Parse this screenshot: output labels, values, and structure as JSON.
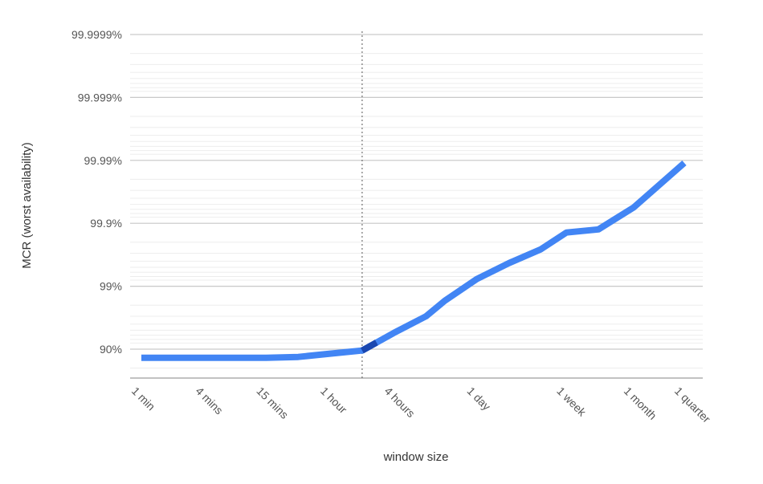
{
  "chart_data": {
    "type": "line",
    "xlabel": "window size",
    "ylabel": "MCR (worst availability)",
    "y_scale": "log-nines",
    "x_scale": "log",
    "grid": true,
    "x_ticks": [
      "1 min",
      "4 mins",
      "15 mins",
      "1 hour",
      "4 hours",
      "1 day",
      "1 week",
      "1 month",
      "1 quarter"
    ],
    "y_ticks": [
      "90%",
      "99%",
      "99.9%",
      "99.99%",
      "99.999%",
      "99.9999%"
    ],
    "ylim": [
      "85%",
      "99.99993%"
    ],
    "reference_line_x": "2 hours",
    "series": [
      {
        "color": "#4285f4",
        "highlight_color": "#1a47b0",
        "points": [
          {
            "x": "1 min",
            "y": 0.8625
          },
          {
            "x": "2 mins",
            "y": 0.8625
          },
          {
            "x": "4 mins",
            "y": 0.8625
          },
          {
            "x": "8 mins",
            "y": 0.8625
          },
          {
            "x": "15 mins",
            "y": 0.8625
          },
          {
            "x": "30 mins",
            "y": 0.867
          },
          {
            "x": "1 hour",
            "y": 0.882
          },
          {
            "x": "2 hours",
            "y": 0.895
          },
          {
            "x": "4 hours",
            "y": 0.945
          },
          {
            "x": "8 hours",
            "y": 0.97
          },
          {
            "x": "12 hours",
            "y": 0.983
          },
          {
            "x": "1 day",
            "y": 0.9923
          },
          {
            "x": "2 days",
            "y": 0.9957
          },
          {
            "x": "4 days",
            "y": 0.9974
          },
          {
            "x": "1 week",
            "y": 0.9986
          },
          {
            "x": "2 weeks",
            "y": 0.99875
          },
          {
            "x": "1 month",
            "y": 0.99944
          },
          {
            "x": "1 quarter",
            "y": 0.99989
          }
        ]
      }
    ]
  }
}
